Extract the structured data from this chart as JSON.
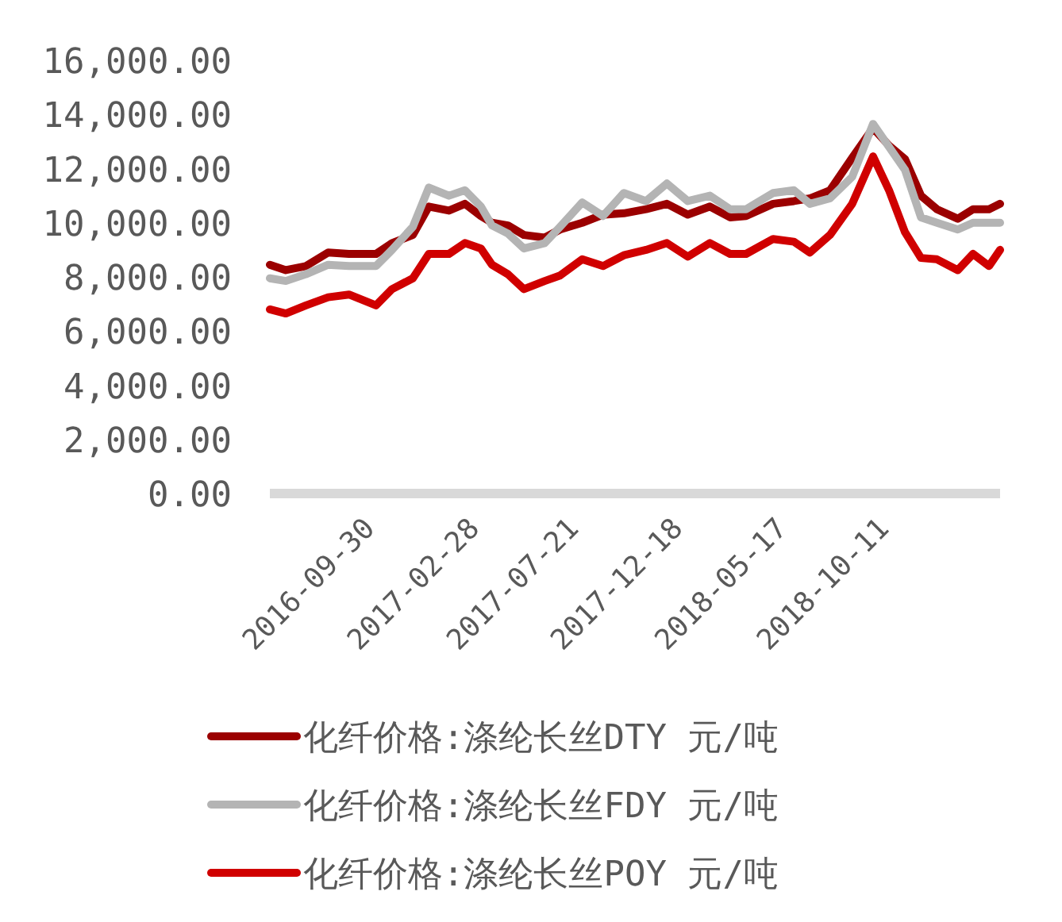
{
  "chart_data": {
    "type": "line",
    "x": [
      "2016-04-30",
      "2016-05-23",
      "2016-06-21",
      "2016-07-23",
      "2016-08-22",
      "2016-09-30",
      "2016-10-23",
      "2016-11-22",
      "2016-12-15",
      "2017-01-13",
      "2017-02-05",
      "2017-02-28",
      "2017-03-16",
      "2017-04-08",
      "2017-05-01",
      "2017-05-31",
      "2017-06-22",
      "2017-07-24",
      "2017-08-23",
      "2017-09-22",
      "2017-10-24",
      "2017-11-23",
      "2017-12-23",
      "2018-01-24",
      "2018-02-22",
      "2018-03-17",
      "2018-04-25",
      "2018-05-25",
      "2018-06-17",
      "2018-07-16",
      "2018-08-17",
      "2018-09-16",
      "2018-10-09",
      "2018-11-01",
      "2018-11-24",
      "2018-12-17",
      "2019-01-16",
      "2019-02-07",
      "2019-03-02",
      "2019-03-18"
    ],
    "series": [
      {
        "name": "化纤价格:涤纶长丝DTY 元/吨",
        "color": "#9b0000",
        "values": [
          8450,
          8250,
          8400,
          8900,
          8850,
          8850,
          9250,
          9550,
          10600,
          10450,
          10700,
          10250,
          10000,
          9900,
          9550,
          9450,
          9750,
          10000,
          10300,
          10350,
          10500,
          10700,
          10300,
          10600,
          10200,
          10250,
          10700,
          10800,
          10900,
          11200,
          12400,
          13500,
          12850,
          12350,
          11000,
          10500,
          10150,
          10500,
          10500,
          10700
        ]
      },
      {
        "name": "化纤价格:涤纶长丝FDY 元/吨",
        "color": "#b4b4b4",
        "values": [
          7950,
          7850,
          8100,
          8450,
          8400,
          8400,
          9000,
          9850,
          11300,
          11000,
          11200,
          10600,
          9900,
          9600,
          9050,
          9250,
          9850,
          10750,
          10250,
          11100,
          10800,
          11450,
          10800,
          11000,
          10500,
          10500,
          11100,
          11200,
          10700,
          10900,
          11700,
          13650,
          12800,
          11950,
          10200,
          10000,
          9750,
          10000,
          10000,
          10000
        ]
      },
      {
        "name": "化纤价格:涤纶长丝POY 元/吨",
        "color": "#d00000",
        "values": [
          6800,
          6650,
          6950,
          7250,
          7350,
          6950,
          7550,
          7950,
          8850,
          8850,
          9250,
          9050,
          8450,
          8100,
          7550,
          7850,
          8050,
          8650,
          8400,
          8800,
          9000,
          9250,
          8750,
          9250,
          8850,
          8850,
          9400,
          9300,
          8900,
          9550,
          10700,
          12450,
          11200,
          9650,
          8700,
          8650,
          8250,
          8850,
          8400,
          9000
        ]
      }
    ],
    "xlim": [
      "2016-04-30",
      "2019-03-18"
    ],
    "xticks": [
      "2016-09-30",
      "2017-02-28",
      "2017-07-21",
      "2017-12-18",
      "2018-05-17",
      "2018-10-11"
    ],
    "ylim": [
      0,
      16000
    ],
    "yticks": [
      {
        "value": 0,
        "label": "0.00"
      },
      {
        "value": 2000,
        "label": "2,000.00"
      },
      {
        "value": 4000,
        "label": "4,000.00"
      },
      {
        "value": 6000,
        "label": "6,000.00"
      },
      {
        "value": 8000,
        "label": "8,000.00"
      },
      {
        "value": 10000,
        "label": "10,000.00"
      },
      {
        "value": 12000,
        "label": "12,000.00"
      },
      {
        "value": 14000,
        "label": "14,000.00"
      },
      {
        "value": 16000,
        "label": "16,000.00"
      }
    ],
    "legend": "bottom"
  }
}
